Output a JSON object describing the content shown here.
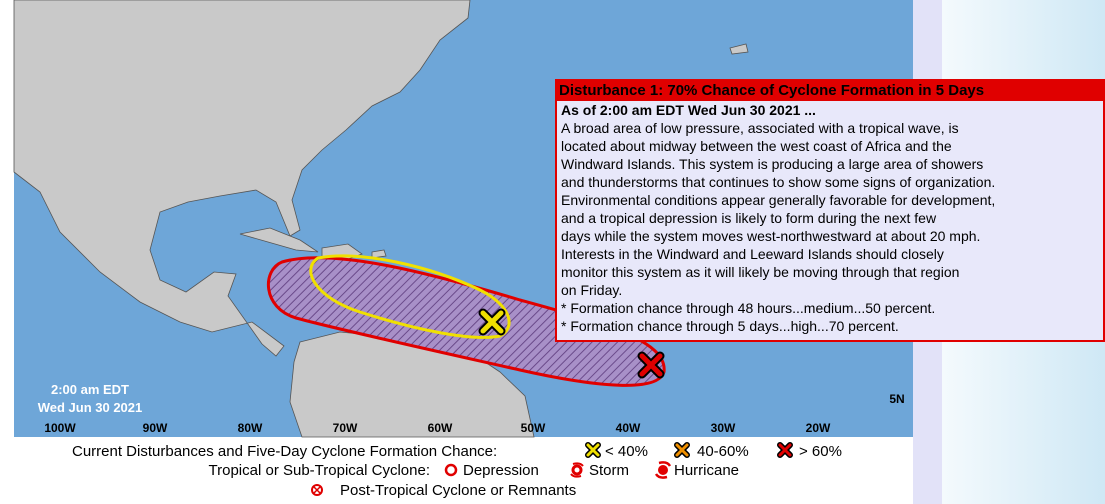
{
  "map": {
    "time": "2:00 am EDT",
    "date": "Wed Jun 30 2021",
    "longitude_labels": [
      "100W",
      "90W",
      "80W",
      "70W",
      "60W",
      "50W",
      "40W",
      "30W",
      "20W"
    ],
    "latitude_labels": [
      "5N"
    ]
  },
  "popup": {
    "title": "Disturbance 1: 70% Chance of Cyclone Formation in 5 Days",
    "issued": "As of 2:00 am EDT Wed Jun 30 2021 ...",
    "lines": [
      "A broad area of low pressure, associated with a tropical wave, is",
      "located about midway between the west coast of Africa and the",
      "Windward Islands. This system is producing a large area of showers",
      "and thunderstorms that continues to show some signs of organization.",
      "Environmental conditions appear generally favorable for development,",
      "and a tropical depression is likely to form during the next few",
      "days while the system moves west-northwestward at about 20 mph.",
      "Interests in the Windward and Leeward Islands should closely",
      "monitor this system as it will likely be moving through that region",
      "on Friday.",
      "* Formation chance through 48 hours...medium...50 percent.",
      "* Formation chance through 5 days...high...70 percent."
    ]
  },
  "legend": {
    "disturbances_label": "Current Disturbances and Five-Day Cyclone Formation Chance:",
    "chances": [
      "< 40%",
      "40-60%",
      "> 60%"
    ],
    "cyclone_label": "Tropical or Sub-Tropical Cyclone:",
    "cyclone_types": [
      "Depression",
      "Storm",
      "Hurricane"
    ],
    "post_tropical": "Post-Tropical Cyclone or Remnants"
  }
}
